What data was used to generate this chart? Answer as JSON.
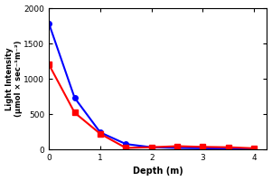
{
  "blue_x": [
    0.0,
    0.5,
    1.0,
    1.5,
    2.0,
    2.5,
    3.0,
    3.5,
    4.0
  ],
  "blue_y": [
    1780,
    730,
    240,
    75,
    30,
    20,
    15,
    10,
    5
  ],
  "red_x": [
    0.0,
    0.5,
    1.0,
    1.5,
    2.0,
    2.5,
    3.0,
    3.5,
    4.0
  ],
  "red_y": [
    1200,
    520,
    220,
    20,
    30,
    45,
    35,
    30,
    15
  ],
  "blue_color": "#0000ff",
  "red_color": "#ff0000",
  "xlabel": "Depth (m)",
  "ylabel_line1": "Light Intensity",
  "ylabel_line2": "(μmol × sec⁻¹m⁻²)",
  "xlim": [
    0,
    4.25
  ],
  "ylim": [
    0,
    2000
  ],
  "yticks": [
    0,
    500,
    1000,
    1500,
    2000
  ],
  "xticks": [
    0,
    1,
    2,
    3,
    4
  ],
  "background_color": "#ffffff"
}
